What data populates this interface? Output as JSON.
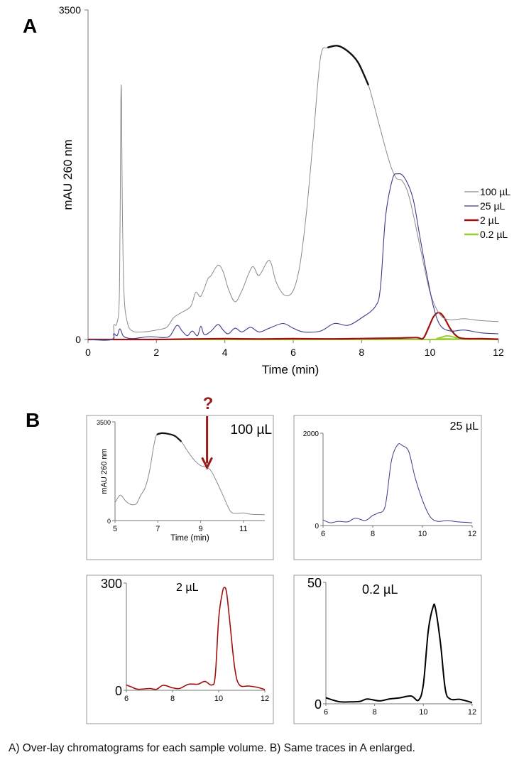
{
  "figure": {
    "panel_a_letter": "A",
    "panel_b_letter": "B",
    "question_mark": "?",
    "caption": "A) Over-lay chromatograms for each sample volume.  B) Same traces in A enlarged.",
    "colors": {
      "100uL": "#8a8a8a",
      "100uL_plateau": "#111111",
      "25uL": "#3b3b86",
      "2uL": "#a01010",
      "0.2uL": "#9acd32",
      "arrow": "#9b1b1b",
      "axis": "#777777",
      "frame": "#888888"
    }
  },
  "chart_data": [
    {
      "id": "A",
      "type": "line",
      "title": "",
      "xlabel": "Time (min)",
      "ylabel": "mAU 260 nm",
      "xlim": [
        0,
        12
      ],
      "ylim": [
        0,
        3500
      ],
      "xticks": [
        0,
        2,
        4,
        6,
        8,
        10,
        12
      ],
      "yticks": [
        0,
        3500
      ],
      "legend_position": "right",
      "grid": false,
      "series": [
        {
          "name": "100 µL",
          "color_key": "100uL",
          "points": [
            [
              0,
              0
            ],
            [
              0.7,
              0
            ],
            [
              0.75,
              150
            ],
            [
              0.85,
              180
            ],
            [
              0.92,
              550
            ],
            [
              0.96,
              2500
            ],
            [
              0.98,
              2530
            ],
            [
              1.0,
              1500
            ],
            [
              1.05,
              500
            ],
            [
              1.15,
              180
            ],
            [
              1.3,
              90
            ],
            [
              1.6,
              80
            ],
            [
              2.0,
              100
            ],
            [
              2.3,
              130
            ],
            [
              2.5,
              230
            ],
            [
              2.7,
              280
            ],
            [
              3.0,
              350
            ],
            [
              3.15,
              500
            ],
            [
              3.3,
              460
            ],
            [
              3.5,
              640
            ],
            [
              3.6,
              680
            ],
            [
              3.8,
              790
            ],
            [
              3.95,
              720
            ],
            [
              4.1,
              540
            ],
            [
              4.3,
              400
            ],
            [
              4.5,
              520
            ],
            [
              4.8,
              770
            ],
            [
              5.0,
              680
            ],
            [
              5.3,
              840
            ],
            [
              5.5,
              610
            ],
            [
              5.75,
              470
            ],
            [
              6.0,
              520
            ],
            [
              6.2,
              800
            ],
            [
              6.4,
              1400
            ],
            [
              6.6,
              2200
            ],
            [
              6.8,
              3000
            ],
            [
              7.0,
              3100
            ],
            [
              7.3,
              3120
            ],
            [
              7.6,
              3060
            ],
            [
              7.9,
              2940
            ],
            [
              8.2,
              2700
            ],
            [
              8.5,
              2300
            ],
            [
              8.8,
              1900
            ],
            [
              9.0,
              1720
            ],
            [
              9.2,
              1680
            ],
            [
              9.4,
              1500
            ],
            [
              9.7,
              1000
            ],
            [
              10.0,
              500
            ],
            [
              10.3,
              260
            ],
            [
              10.6,
              210
            ],
            [
              11.0,
              220
            ],
            [
              11.5,
              200
            ],
            [
              12.0,
              190
            ]
          ]
        },
        {
          "name": "25 µL",
          "color_key": "25uL",
          "points": [
            [
              0,
              0
            ],
            [
              0.7,
              0
            ],
            [
              0.75,
              60
            ],
            [
              0.85,
              40
            ],
            [
              0.92,
              110
            ],
            [
              0.97,
              90
            ],
            [
              1.05,
              30
            ],
            [
              1.3,
              10
            ],
            [
              1.8,
              30
            ],
            [
              2.2,
              20
            ],
            [
              2.4,
              40
            ],
            [
              2.6,
              150
            ],
            [
              2.75,
              90
            ],
            [
              2.9,
              40
            ],
            [
              3.05,
              90
            ],
            [
              3.2,
              40
            ],
            [
              3.3,
              140
            ],
            [
              3.4,
              50
            ],
            [
              3.6,
              90
            ],
            [
              3.8,
              160
            ],
            [
              3.95,
              100
            ],
            [
              4.1,
              60
            ],
            [
              4.3,
              120
            ],
            [
              4.5,
              80
            ],
            [
              4.75,
              130
            ],
            [
              5.0,
              80
            ],
            [
              5.3,
              120
            ],
            [
              5.7,
              170
            ],
            [
              6.0,
              120
            ],
            [
              6.3,
              80
            ],
            [
              6.8,
              90
            ],
            [
              7.2,
              170
            ],
            [
              7.6,
              150
            ],
            [
              8.0,
              230
            ],
            [
              8.4,
              350
            ],
            [
              8.55,
              550
            ],
            [
              8.7,
              1300
            ],
            [
              8.9,
              1700
            ],
            [
              9.05,
              1760
            ],
            [
              9.25,
              1720
            ],
            [
              9.5,
              1500
            ],
            [
              9.7,
              1100
            ],
            [
              9.9,
              700
            ],
            [
              10.1,
              350
            ],
            [
              10.3,
              150
            ],
            [
              10.6,
              90
            ],
            [
              11.0,
              100
            ],
            [
              11.5,
              70
            ],
            [
              12.0,
              60
            ]
          ]
        },
        {
          "name": "2 µL",
          "color_key": "2uL",
          "points": [
            [
              0,
              0
            ],
            [
              2.0,
              0
            ],
            [
              3.0,
              5
            ],
            [
              4.0,
              8
            ],
            [
              5.0,
              5
            ],
            [
              6.0,
              8
            ],
            [
              7.0,
              6
            ],
            [
              8.0,
              10
            ],
            [
              9.0,
              14
            ],
            [
              9.6,
              20
            ],
            [
              9.8,
              12
            ],
            [
              9.95,
              120
            ],
            [
              10.1,
              240
            ],
            [
              10.25,
              285
            ],
            [
              10.4,
              240
            ],
            [
              10.6,
              110
            ],
            [
              10.8,
              30
            ],
            [
              11.0,
              10
            ],
            [
              11.5,
              8
            ],
            [
              12.0,
              3
            ]
          ]
        },
        {
          "name": "0.2 µL",
          "color_key": "0.2uL",
          "points": [
            [
              0,
              0
            ],
            [
              10.0,
              0
            ],
            [
              10.2,
              10
            ],
            [
              10.4,
              30
            ],
            [
              10.5,
              38
            ],
            [
              10.65,
              30
            ],
            [
              10.85,
              8
            ],
            [
              11.0,
              2
            ],
            [
              12.0,
              0
            ]
          ]
        }
      ]
    },
    {
      "id": "B-100",
      "type": "line",
      "label": "100 µL",
      "xlabel": "Time (min)",
      "ylabel": "mAU 260 nm",
      "xlim": [
        5,
        12
      ],
      "ylim": [
        0,
        3500
      ],
      "xticks": [
        5,
        7,
        9,
        11
      ],
      "yticks": [
        0,
        3500
      ],
      "annotation": "? (arrow pointing at shoulder ~9.3 min)",
      "arrow_x": 9.3,
      "series": [
        {
          "name": "100 µL",
          "color_key": "100uL",
          "points": [
            [
              5.0,
              640
            ],
            [
              5.25,
              900
            ],
            [
              5.5,
              690
            ],
            [
              5.75,
              570
            ],
            [
              6.0,
              600
            ],
            [
              6.2,
              900
            ],
            [
              6.4,
              1150
            ],
            [
              6.6,
              1700
            ],
            [
              6.8,
              2600
            ],
            [
              6.95,
              3050
            ],
            [
              7.2,
              3100
            ],
            [
              7.5,
              3070
            ],
            [
              7.8,
              3000
            ],
            [
              8.1,
              2800
            ],
            [
              8.4,
              2450
            ],
            [
              8.7,
              2150
            ],
            [
              9.0,
              1950
            ],
            [
              9.3,
              1880
            ],
            [
              9.5,
              1750
            ],
            [
              9.8,
              1300
            ],
            [
              10.1,
              800
            ],
            [
              10.4,
              320
            ],
            [
              10.7,
              260
            ],
            [
              11.0,
              270
            ],
            [
              11.4,
              220
            ],
            [
              12.0,
              210
            ]
          ]
        }
      ]
    },
    {
      "id": "B-25",
      "type": "line",
      "label": "25 µL",
      "xlim": [
        6,
        12
      ],
      "ylim": [
        0,
        2000
      ],
      "xticks": [
        6,
        8,
        10,
        12
      ],
      "yticks": [
        0,
        2000
      ],
      "series": [
        {
          "name": "25 µL",
          "color_key": "25uL",
          "points": [
            [
              6.0,
              120
            ],
            [
              6.3,
              60
            ],
            [
              6.6,
              90
            ],
            [
              7.0,
              80
            ],
            [
              7.3,
              160
            ],
            [
              7.7,
              110
            ],
            [
              8.0,
              220
            ],
            [
              8.2,
              270
            ],
            [
              8.5,
              420
            ],
            [
              8.75,
              1400
            ],
            [
              9.0,
              1750
            ],
            [
              9.2,
              1730
            ],
            [
              9.45,
              1600
            ],
            [
              9.7,
              1050
            ],
            [
              10.0,
              550
            ],
            [
              10.3,
              200
            ],
            [
              10.6,
              90
            ],
            [
              11.0,
              110
            ],
            [
              11.4,
              80
            ],
            [
              12.0,
              60
            ]
          ]
        }
      ]
    },
    {
      "id": "B-2",
      "type": "line",
      "label": "2 µL",
      "xlim": [
        6,
        12
      ],
      "ylim": [
        0,
        300
      ],
      "xticks": [
        6,
        8,
        10,
        12
      ],
      "yticks": [
        0,
        300
      ],
      "series": [
        {
          "name": "2 µL",
          "color_key": "2uL",
          "points": [
            [
              6.0,
              15
            ],
            [
              6.2,
              10
            ],
            [
              6.5,
              3
            ],
            [
              7.0,
              5
            ],
            [
              7.3,
              3
            ],
            [
              7.6,
              14
            ],
            [
              8.0,
              7
            ],
            [
              8.3,
              5
            ],
            [
              8.7,
              17
            ],
            [
              9.1,
              17
            ],
            [
              9.4,
              25
            ],
            [
              9.7,
              15
            ],
            [
              9.85,
              40
            ],
            [
              10.0,
              200
            ],
            [
              10.15,
              270
            ],
            [
              10.25,
              288
            ],
            [
              10.35,
              270
            ],
            [
              10.5,
              180
            ],
            [
              10.7,
              60
            ],
            [
              10.9,
              15
            ],
            [
              11.3,
              12
            ],
            [
              11.7,
              8
            ],
            [
              12.0,
              2
            ]
          ]
        }
      ]
    },
    {
      "id": "B-0.2",
      "type": "line",
      "label": "0.2 µL",
      "xlim": [
        6,
        12
      ],
      "ylim": [
        0,
        50
      ],
      "xticks": [
        6,
        8,
        10,
        12
      ],
      "yticks": [
        0,
        50
      ],
      "series": [
        {
          "name": "0.2 µL",
          "color_key": "black",
          "points": [
            [
              6.0,
              2.5
            ],
            [
              6.3,
              1.5
            ],
            [
              6.6,
              0.8
            ],
            [
              7.0,
              0.8
            ],
            [
              7.4,
              1.0
            ],
            [
              7.7,
              2.0
            ],
            [
              8.2,
              1.2
            ],
            [
              8.6,
              2.0
            ],
            [
              9.0,
              2.4
            ],
            [
              9.5,
              3.2
            ],
            [
              9.8,
              1.5
            ],
            [
              10.0,
              8
            ],
            [
              10.2,
              30
            ],
            [
              10.4,
              40
            ],
            [
              10.5,
              39
            ],
            [
              10.7,
              25
            ],
            [
              10.9,
              6
            ],
            [
              11.1,
              2
            ],
            [
              11.5,
              1.8
            ],
            [
              12.0,
              0.5
            ]
          ]
        }
      ]
    }
  ]
}
